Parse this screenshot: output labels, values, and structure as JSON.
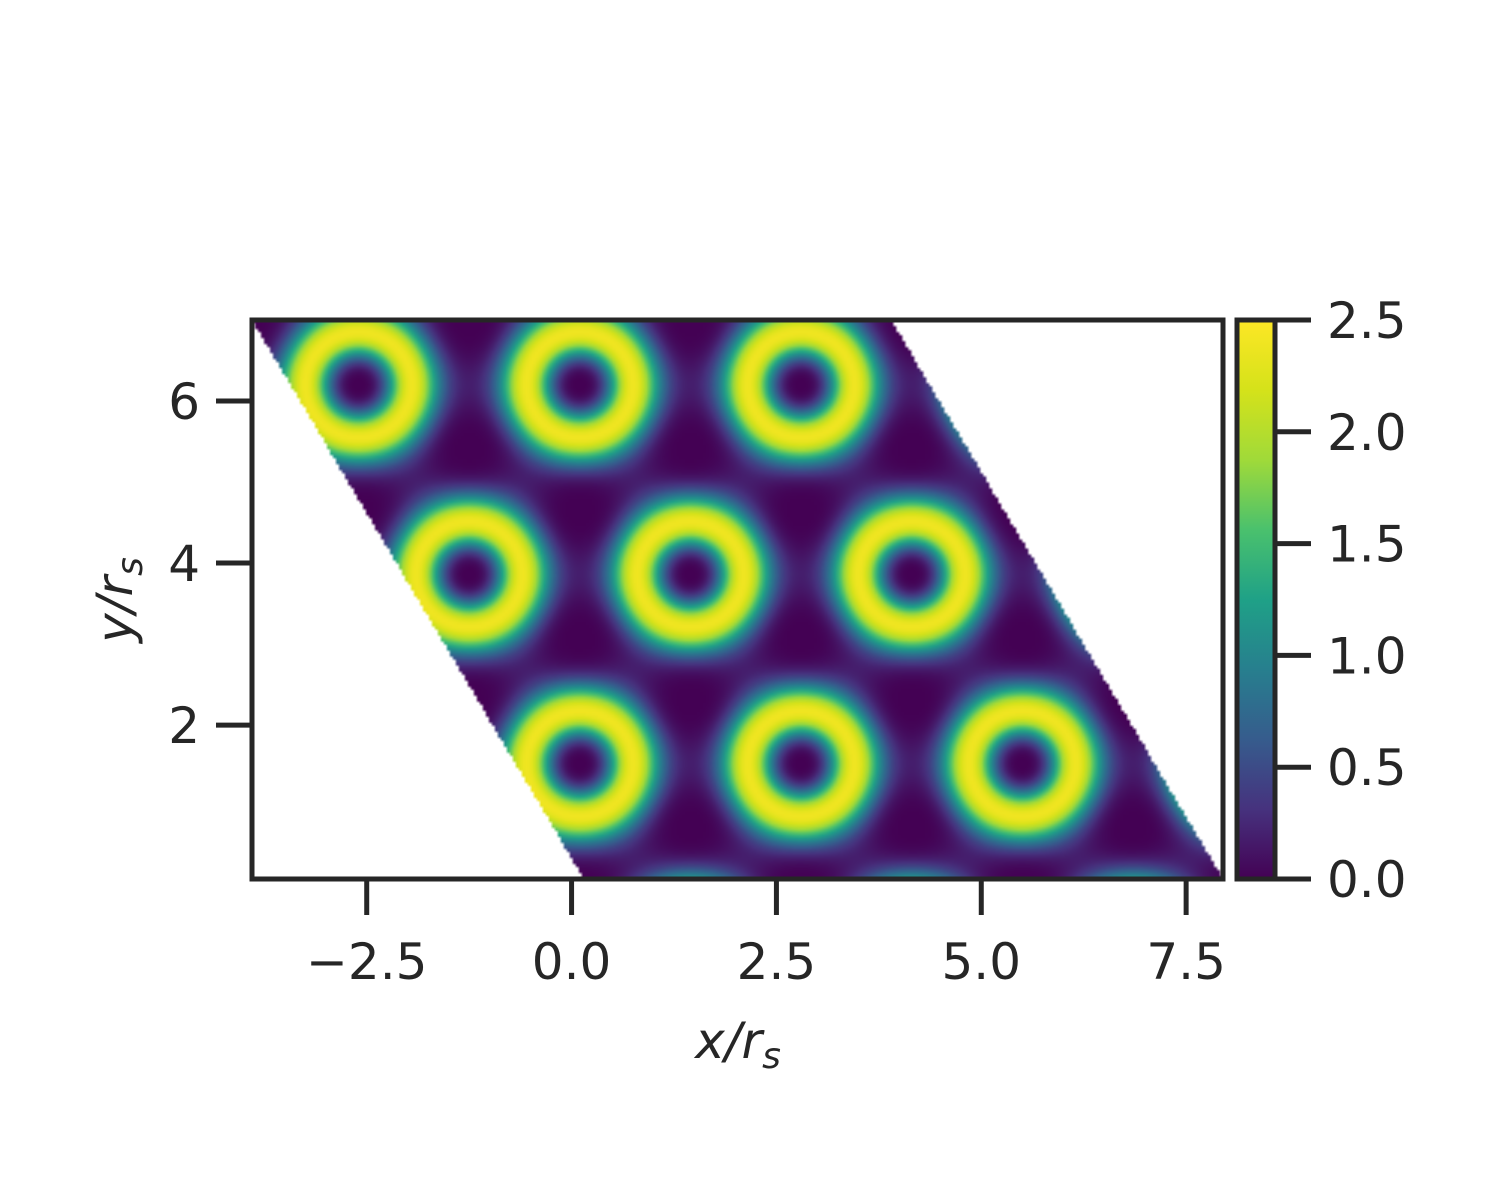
{
  "chart_data": {
    "type": "heatmap",
    "title": "",
    "xlabel": {
      "base": "x/r",
      "sub": "s"
    },
    "ylabel": {
      "base": "y/r",
      "sub": "s"
    },
    "xlim": [
      -3.9,
      7.95
    ],
    "ylim": [
      0.1,
      7.0
    ],
    "zlim": [
      0.0,
      2.5
    ],
    "colormap": "viridis",
    "grid": false,
    "lattice_constant": 2.7,
    "domain": "parallelogram with 120-degree lattice vectors, spanning x from -3.9 to 7.9 and y from 0.1 to 7.0",
    "x_ticks": [
      {
        "value": -2.5,
        "label": "−2.5"
      },
      {
        "value": 0.0,
        "label": "0.0"
      },
      {
        "value": 2.5,
        "label": "2.5"
      },
      {
        "value": 5.0,
        "label": "5.0"
      },
      {
        "value": 7.5,
        "label": "7.5"
      }
    ],
    "y_ticks": [
      {
        "value": 2,
        "label": "2"
      },
      {
        "value": 4,
        "label": "4"
      },
      {
        "value": 6,
        "label": "6"
      }
    ],
    "colorbar_ticks": [
      {
        "value": 0.0,
        "label": "0.0"
      },
      {
        "value": 0.5,
        "label": "0.5"
      },
      {
        "value": 1.0,
        "label": "1.0"
      },
      {
        "value": 1.5,
        "label": "1.5"
      },
      {
        "value": 2.0,
        "label": "2.0"
      },
      {
        "value": 2.5,
        "label": "2.5"
      }
    ]
  }
}
